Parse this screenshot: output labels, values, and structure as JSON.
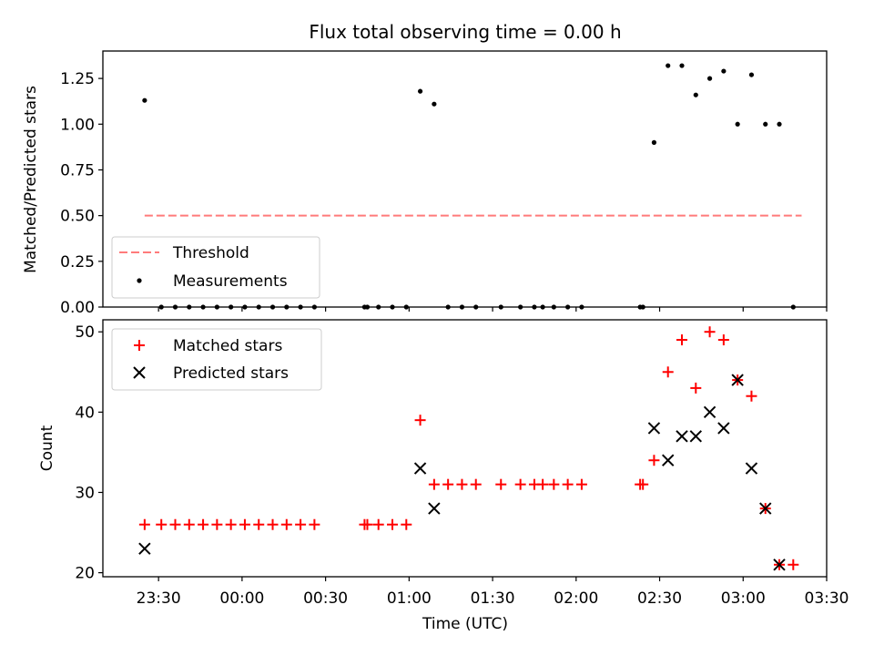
{
  "chart_data": [
    {
      "type": "scatter",
      "title": "Flux total observing time = 0.00 h",
      "xlabel": "",
      "ylabel": "Matched/Predicted stars",
      "xlim": [
        "23:10",
        "03:30"
      ],
      "ylim": [
        0,
        1.4
      ],
      "yticks": [
        "0.00",
        "0.25",
        "0.50",
        "0.75",
        "1.00",
        "1.25"
      ],
      "grid": false,
      "legend_position": "lower-left",
      "threshold": {
        "name": "Threshold",
        "value": 0.5,
        "x_start": "23:25",
        "x_end": "03:21",
        "color": "#ff7b7b",
        "style": "dashed"
      },
      "series": [
        {
          "name": "Measurements",
          "color": "#000000",
          "marker": "dot",
          "points": [
            [
              "23:25",
              1.13
            ],
            [
              "23:31",
              0
            ],
            [
              "23:36",
              0
            ],
            [
              "23:41",
              0
            ],
            [
              "23:46",
              0
            ],
            [
              "23:51",
              0
            ],
            [
              "23:56",
              0
            ],
            [
              "00:01",
              0
            ],
            [
              "00:06",
              0
            ],
            [
              "00:11",
              0
            ],
            [
              "00:16",
              0
            ],
            [
              "00:21",
              0
            ],
            [
              "00:26",
              0
            ],
            [
              "00:44",
              0
            ],
            [
              "00:45",
              0
            ],
            [
              "00:49",
              0
            ],
            [
              "00:54",
              0
            ],
            [
              "00:59",
              0
            ],
            [
              "01:04",
              1.18
            ],
            [
              "01:09",
              1.11
            ],
            [
              "01:14",
              0
            ],
            [
              "01:19",
              0
            ],
            [
              "01:24",
              0
            ],
            [
              "01:33",
              0
            ],
            [
              "01:40",
              0
            ],
            [
              "01:45",
              0
            ],
            [
              "01:48",
              0
            ],
            [
              "01:52",
              0
            ],
            [
              "01:57",
              0
            ],
            [
              "02:02",
              0
            ],
            [
              "02:23",
              0
            ],
            [
              "02:24",
              0
            ],
            [
              "02:28",
              0.9
            ],
            [
              "02:33",
              1.32
            ],
            [
              "02:38",
              1.32
            ],
            [
              "02:43",
              1.16
            ],
            [
              "02:48",
              1.25
            ],
            [
              "02:53",
              1.29
            ],
            [
              "02:58",
              1.0
            ],
            [
              "03:03",
              1.27
            ],
            [
              "03:08",
              1.0
            ],
            [
              "03:13",
              1.0
            ],
            [
              "03:18",
              0
            ]
          ]
        }
      ]
    },
    {
      "type": "scatter",
      "title": "",
      "xlabel": "Time (UTC)",
      "ylabel": "Count",
      "xlim": [
        "23:10",
        "03:30"
      ],
      "ylim": [
        19.5,
        51.5
      ],
      "xticks": [
        "23:30",
        "00:00",
        "00:30",
        "01:00",
        "01:30",
        "02:00",
        "02:30",
        "03:00",
        "03:30"
      ],
      "yticks": [
        "20",
        "30",
        "40",
        "50"
      ],
      "grid": false,
      "legend_position": "upper-left",
      "series": [
        {
          "name": "Matched stars",
          "color": "#ff0000",
          "marker": "plus",
          "points": [
            [
              "23:25",
              26
            ],
            [
              "23:31",
              26
            ],
            [
              "23:36",
              26
            ],
            [
              "23:41",
              26
            ],
            [
              "23:46",
              26
            ],
            [
              "23:51",
              26
            ],
            [
              "23:56",
              26
            ],
            [
              "00:01",
              26
            ],
            [
              "00:06",
              26
            ],
            [
              "00:11",
              26
            ],
            [
              "00:16",
              26
            ],
            [
              "00:21",
              26
            ],
            [
              "00:26",
              26
            ],
            [
              "00:44",
              26
            ],
            [
              "00:45",
              26
            ],
            [
              "00:49",
              26
            ],
            [
              "00:54",
              26
            ],
            [
              "00:59",
              26
            ],
            [
              "01:04",
              39
            ],
            [
              "01:09",
              31
            ],
            [
              "01:14",
              31
            ],
            [
              "01:19",
              31
            ],
            [
              "01:24",
              31
            ],
            [
              "01:33",
              31
            ],
            [
              "01:40",
              31
            ],
            [
              "01:45",
              31
            ],
            [
              "01:48",
              31
            ],
            [
              "01:52",
              31
            ],
            [
              "01:57",
              31
            ],
            [
              "02:02",
              31
            ],
            [
              "02:23",
              31
            ],
            [
              "02:24",
              31
            ],
            [
              "02:28",
              34
            ],
            [
              "02:33",
              45
            ],
            [
              "02:38",
              49
            ],
            [
              "02:43",
              43
            ],
            [
              "02:48",
              50
            ],
            [
              "02:53",
              49
            ],
            [
              "02:58",
              44
            ],
            [
              "03:03",
              42
            ],
            [
              "03:08",
              28
            ],
            [
              "03:13",
              21
            ],
            [
              "03:18",
              21
            ]
          ]
        },
        {
          "name": "Predicted stars",
          "color": "#000000",
          "marker": "x",
          "points": [
            [
              "23:25",
              23
            ],
            [
              "01:04",
              33
            ],
            [
              "01:09",
              28
            ],
            [
              "02:28",
              38
            ],
            [
              "02:33",
              34
            ],
            [
              "02:38",
              37
            ],
            [
              "02:43",
              37
            ],
            [
              "02:48",
              40
            ],
            [
              "02:53",
              38
            ],
            [
              "02:58",
              44
            ],
            [
              "03:03",
              33
            ],
            [
              "03:08",
              28
            ],
            [
              "03:13",
              21
            ]
          ]
        }
      ]
    }
  ]
}
